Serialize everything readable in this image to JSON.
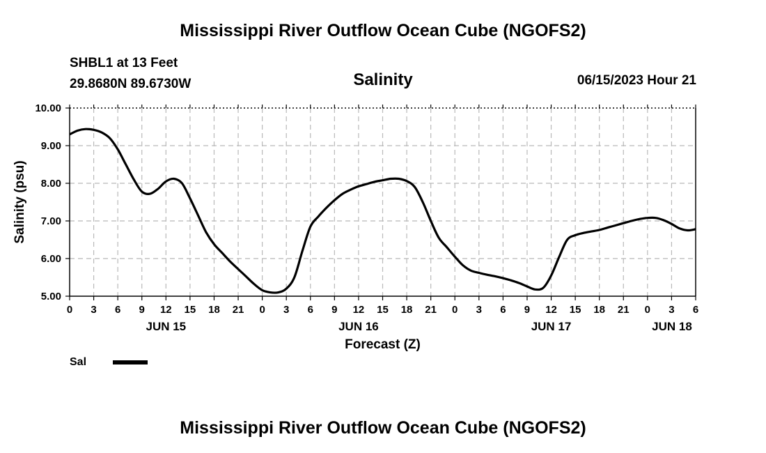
{
  "header": {
    "title": "Mississippi River Outflow Ocean Cube (NGOFS2)",
    "station": "SHBL1 at 13 Feet",
    "coords": "29.8680N  89.6730W",
    "datetime": "06/15/2023 Hour 21"
  },
  "footer": {
    "title": "Mississippi River Outflow Ocean Cube (NGOFS2)"
  },
  "legend": {
    "label": "Sal"
  },
  "chart_data": {
    "type": "line",
    "title": "Salinity",
    "xlabel": "Forecast (Z)",
    "ylabel": "Salinity (psu)",
    "xlim": [
      0,
      78
    ],
    "ylim": [
      5.0,
      10.0
    ],
    "yticks": [
      "5.00",
      "6.00",
      "7.00",
      "8.00",
      "9.00",
      "10.00"
    ],
    "xtick_labels": [
      "0",
      "3",
      "6",
      "9",
      "12",
      "15",
      "18",
      "21",
      "0",
      "3",
      "6",
      "9",
      "12",
      "15",
      "18",
      "21",
      "0",
      "3",
      "6",
      "9",
      "12",
      "15",
      "18",
      "21",
      "0",
      "3",
      "6"
    ],
    "day_labels": [
      {
        "label": "JUN 15",
        "hour": 12
      },
      {
        "label": "JUN 16",
        "hour": 36
      },
      {
        "label": "JUN 17",
        "hour": 60
      },
      {
        "label": "JUN 18",
        "hour": 78
      }
    ],
    "grid": true,
    "series": [
      {
        "name": "Sal",
        "color": "#000000",
        "x": [
          0,
          1,
          2,
          3,
          4,
          5,
          6,
          7,
          8,
          9,
          10,
          11,
          12,
          13,
          14,
          15,
          16,
          17,
          18,
          19,
          20,
          21,
          22,
          23,
          24,
          25,
          26,
          27,
          28,
          29,
          30,
          31,
          32,
          33,
          34,
          35,
          36,
          37,
          38,
          39,
          40,
          41,
          42,
          43,
          44,
          45,
          46,
          47,
          48,
          49,
          50,
          51,
          52,
          53,
          54,
          55,
          56,
          57,
          58,
          59,
          60,
          61,
          62,
          63,
          64,
          65,
          66,
          67,
          68,
          69,
          70,
          71,
          72,
          73,
          74,
          75,
          76,
          77,
          78
        ],
        "values": [
          9.3,
          9.4,
          9.44,
          9.42,
          9.35,
          9.2,
          8.9,
          8.5,
          8.1,
          7.78,
          7.72,
          7.85,
          8.05,
          8.12,
          8.0,
          7.6,
          7.15,
          6.7,
          6.38,
          6.15,
          5.92,
          5.72,
          5.52,
          5.32,
          5.16,
          5.1,
          5.1,
          5.2,
          5.5,
          6.2,
          6.85,
          7.12,
          7.35,
          7.55,
          7.72,
          7.83,
          7.92,
          7.98,
          8.04,
          8.08,
          8.12,
          8.12,
          8.06,
          7.9,
          7.5,
          7.0,
          6.55,
          6.3,
          6.05,
          5.82,
          5.68,
          5.62,
          5.57,
          5.53,
          5.48,
          5.42,
          5.35,
          5.26,
          5.18,
          5.22,
          5.55,
          6.05,
          6.5,
          6.62,
          6.68,
          6.72,
          6.76,
          6.82,
          6.88,
          6.94,
          7.0,
          7.05,
          7.08,
          7.08,
          7.02,
          6.92,
          6.8,
          6.75,
          6.78
        ]
      }
    ]
  }
}
